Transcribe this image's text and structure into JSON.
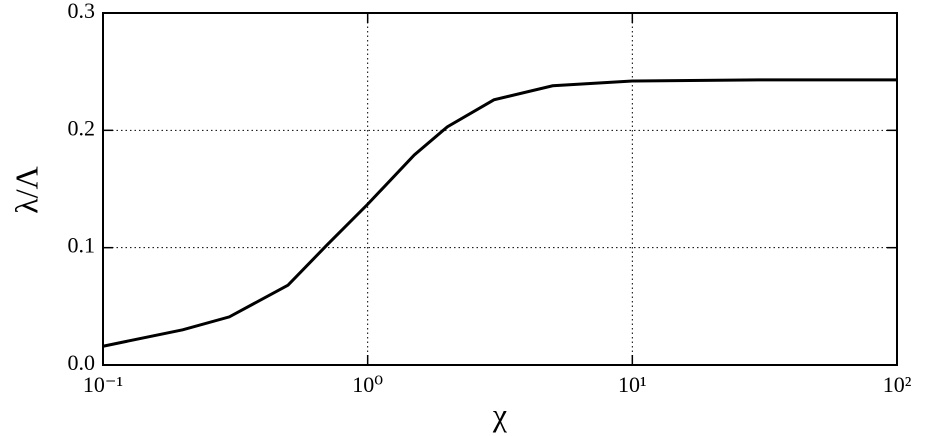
{
  "chart_data": {
    "type": "line",
    "xlabel": "χ",
    "ylabel": "λ/Λ",
    "xscale": "log",
    "grid": true,
    "x": [
      0.1,
      0.2,
      0.3,
      0.5,
      0.7,
      1,
      1.5,
      2,
      3,
      5,
      10,
      30,
      100
    ],
    "series": [
      {
        "color": "#000000",
        "values": [
          0.016,
          0.03,
          0.041,
          0.068,
          0.102,
          0.137,
          0.179,
          0.203,
          0.226,
          0.238,
          0.242,
          0.243,
          0.243
        ]
      }
    ],
    "xlim": [
      0.1,
      100
    ],
    "xticks": [
      {
        "value": 0.1,
        "label": "10⁻¹"
      },
      {
        "value": 1,
        "label": "10⁰"
      },
      {
        "value": 10,
        "label": "10¹"
      },
      {
        "value": 100,
        "label": "10²"
      }
    ],
    "ylim": [
      0,
      0.3
    ],
    "yticks": [
      {
        "value": 0,
        "label": "0.0"
      },
      0.1,
      0.2,
      0.3
    ]
  }
}
